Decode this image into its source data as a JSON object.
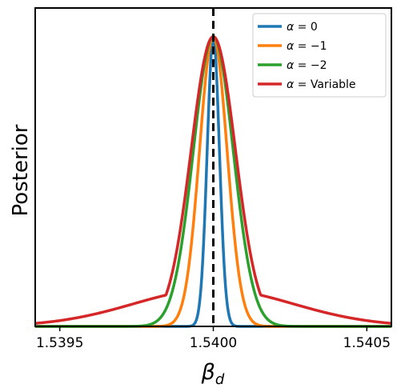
{
  "chart_data": {
    "type": "line",
    "title": "",
    "xlabel": "β_d",
    "xlabel_main": "β",
    "xlabel_sub": "d",
    "ylabel": "Posterior",
    "xlim": [
      1.53942,
      1.54058
    ],
    "ylim": [
      0.0,
      1.0
    ],
    "x_ticks": [
      1.5395,
      1.54,
      1.5405
    ],
    "x_tick_labels": [
      "1.5395",
      "1.5400",
      "1.5405"
    ],
    "y_ticks_shown": false,
    "grid": false,
    "legend_position": "top-right",
    "reference_line": {
      "x": 1.54,
      "style": "dashed",
      "color": "#000000"
    },
    "series": [
      {
        "name": "α = 0",
        "label_main": "α",
        "label_rest": " = 0",
        "color": "#1f77b4",
        "center": 1.54,
        "sigma": 2e-05,
        "tail": 0.0,
        "x": [
          1.5399,
          1.53993,
          1.53996,
          1.53998,
          1.54,
          1.54002,
          1.54004,
          1.54007,
          1.5401
        ],
        "values": [
          0.0,
          0.02,
          0.2,
          0.6,
          1.0,
          0.6,
          0.2,
          0.02,
          0.0
        ]
      },
      {
        "name": "α = −1",
        "label_main": "α",
        "label_rest": " = −1",
        "color": "#ff7f0e",
        "center": 1.54,
        "sigma": 4.5e-05,
        "tail": 0.0,
        "x": [
          1.53985,
          1.5399,
          1.53995,
          1.54,
          1.54005,
          1.5401,
          1.54015
        ],
        "values": [
          0.02,
          0.15,
          0.55,
          1.0,
          0.55,
          0.15,
          0.02
        ]
      },
      {
        "name": "α = −2",
        "label_main": "α",
        "label_rest": " = −2",
        "color": "#2ca02c",
        "center": 1.54,
        "sigma": 6.5e-05,
        "tail": 0.0,
        "x": [
          1.5398,
          1.53985,
          1.5399,
          1.53995,
          1.54,
          1.54005,
          1.5401,
          1.54015,
          1.5402
        ],
        "values": [
          0.02,
          0.1,
          0.3,
          0.7,
          1.0,
          0.7,
          0.3,
          0.1,
          0.02
        ]
      },
      {
        "name": "α = Variable",
        "label_main": "α",
        "label_rest": " = Variable",
        "color": "#d62728",
        "center": 1.54,
        "sigma": 7.2e-05,
        "tail": 0.02,
        "x": [
          1.5395,
          1.5397,
          1.53985,
          1.5399,
          1.53995,
          1.54,
          1.54005,
          1.5401,
          1.54015,
          1.5403,
          1.5405
        ],
        "values": [
          0.03,
          0.07,
          0.23,
          0.42,
          0.8,
          1.0,
          0.8,
          0.42,
          0.23,
          0.07,
          0.03
        ]
      }
    ]
  }
}
